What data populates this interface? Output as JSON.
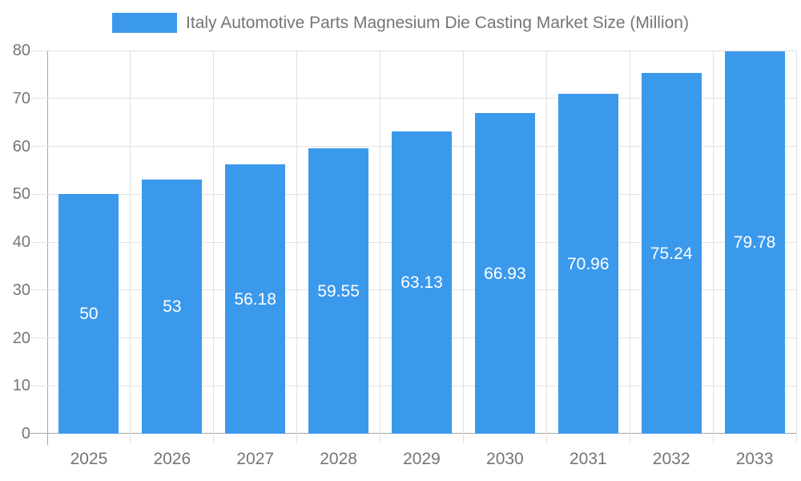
{
  "legend": {
    "label": "Italy Automotive Parts Magnesium Die Casting Market Size (Million)"
  },
  "chart_data": {
    "type": "bar",
    "title": "Italy Automotive Parts Magnesium Die Casting Market Size (Million)",
    "categories": [
      "2025",
      "2026",
      "2027",
      "2028",
      "2029",
      "2030",
      "2031",
      "2032",
      "2033"
    ],
    "values": [
      50,
      53,
      56.18,
      59.55,
      63.13,
      66.93,
      70.96,
      75.24,
      79.78
    ],
    "bar_labels": [
      "50",
      "53",
      "56.18",
      "59.55",
      "63.13",
      "66.93",
      "70.96",
      "75.24",
      "79.78"
    ],
    "xlabel": "",
    "ylabel": "",
    "ylim": [
      0,
      80
    ],
    "y_ticks": [
      0,
      10,
      20,
      30,
      40,
      50,
      60,
      70,
      80
    ],
    "grid": true,
    "legend_position": "top",
    "colors": {
      "bar": "#3B99EC",
      "bar_label": "#FFFFFF",
      "text": "#757575",
      "axis": "#A6A6A6",
      "gridline": "#E2E2E2",
      "background": "#FFFFFF"
    }
  }
}
